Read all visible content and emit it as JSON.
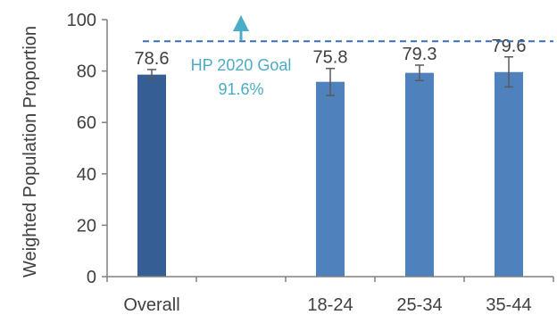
{
  "chart_data": {
    "type": "bar",
    "ylabel": "Weighted Population Proportion",
    "ylim": [
      0,
      100
    ],
    "yticks": [
      "0",
      "20",
      "40",
      "60",
      "80",
      "100"
    ],
    "grid": false,
    "categories": [
      "Overall",
      "",
      "18-24",
      "25-34",
      "35-44"
    ],
    "values": [
      78.6,
      null,
      75.8,
      79.3,
      79.6
    ],
    "value_labels": [
      "78.6",
      "",
      "75.8",
      "79.3",
      "79.6"
    ],
    "error_low": [
      77.0,
      null,
      70.5,
      76.3,
      73.8
    ],
    "error_high": [
      80.6,
      null,
      81.0,
      82.3,
      85.5
    ],
    "bar_colors": [
      "#355f94",
      null,
      "#4f81bd",
      "#4f81bd",
      "#4f81bd"
    ],
    "goal": {
      "value": 91.6,
      "label": "HP 2020 Goal",
      "value_label": "91.6%",
      "color": "#4bacc6",
      "line_color": "#3a6fb0"
    }
  }
}
